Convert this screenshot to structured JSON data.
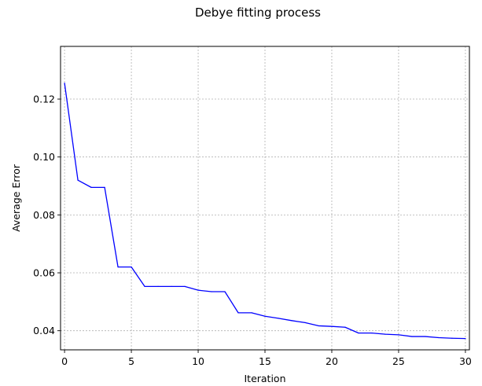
{
  "chart_data": {
    "type": "line",
    "title": "Debye fitting process",
    "xlabel": "Iteration",
    "ylabel": "Average Error",
    "xlim": [
      -0.3,
      30.3
    ],
    "ylim": [
      0.0334,
      0.1382
    ],
    "xticks": [
      0,
      5,
      10,
      15,
      20,
      25,
      30
    ],
    "yticks": [
      0.04,
      0.06,
      0.08,
      0.1,
      0.12
    ],
    "ytick_labels": [
      "0.04",
      "0.06",
      "0.08",
      "0.10",
      "0.12"
    ],
    "xtick_labels": [
      "0",
      "5",
      "10",
      "15",
      "20",
      "25",
      "30"
    ],
    "grid": true,
    "series": [
      {
        "color": "#0000ff",
        "x": [
          0,
          1,
          2,
          3,
          4,
          5,
          6,
          7,
          8,
          9,
          10,
          11,
          12,
          13,
          14,
          15,
          16,
          17,
          18,
          19,
          20,
          21,
          22,
          23,
          24,
          25,
          26,
          27,
          28,
          29,
          30
        ],
        "y": [
          0.1255,
          0.092,
          0.0895,
          0.0895,
          0.062,
          0.062,
          0.0553,
          0.0553,
          0.0553,
          0.0553,
          0.054,
          0.0535,
          0.0535,
          0.0462,
          0.0462,
          0.045,
          0.0443,
          0.0435,
          0.0428,
          0.0417,
          0.0415,
          0.0412,
          0.0392,
          0.0392,
          0.0388,
          0.0386,
          0.038,
          0.038,
          0.0376,
          0.0374,
          0.0373
        ]
      }
    ]
  }
}
